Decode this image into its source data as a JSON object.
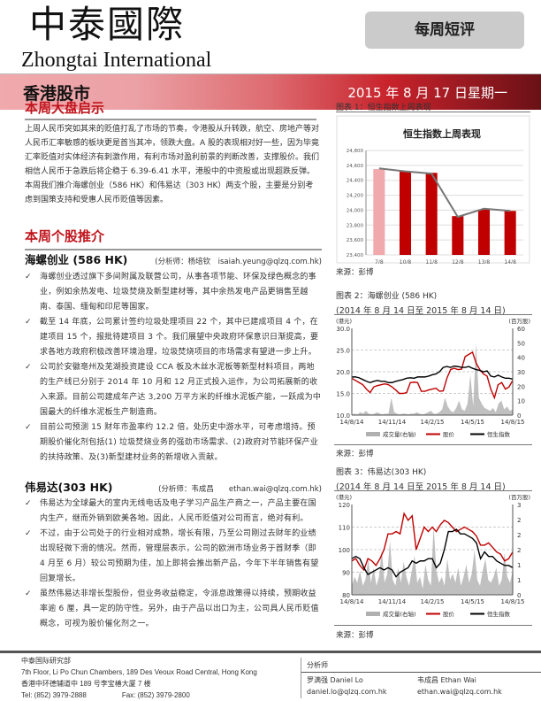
{
  "header": {
    "logo_cn": "中泰國際",
    "logo_en": "Zhongtai International",
    "badge": "每周短评",
    "section": "香港股市",
    "date": "2015 年 8 月 17 日星期一"
  },
  "market": {
    "heading": "本周大盘启示",
    "text": "上周人民币突如其来的贬值打乱了市场的节奏，令港股从升转跌，航空、房地产等对人民币汇率敏感的板块更是首当其冲，领跌大盘。A 股的表现相对好一些，因为毕竟汇率贬值对实体经济有刺激作用，有利市场对盈利前景的判断改善，支撑股价。我们相信人民币于急跌后将企稳于 6.39-6.41 水平，港股中的中资股或出现超跌反弹。本周我们推介海螺创业（586 HK）和伟易达（303 HK）两支个股，主要是分别考虑到国策支持和受惠人民币贬值等因素。"
  },
  "picks": {
    "heading": "本周个股推介",
    "stocks": [
      {
        "name": "海螺创业 (586 HK)",
        "analyst": "(分析师：杨培钦　isaiah.yeung@qlzq.com.hk)",
        "bullets": [
          "海螺创业透过旗下多间附属及联营公司，从事各项节能、环保及绿色概念的事业，例如余热发电、垃圾焚烧及新型建材等，其中余热发电产品更销售至越南、泰国、缅甸和印尼等国家。",
          "截至 14 年底，公司累计签约垃圾处理项目 22 个，其中已建成项目 4 个，在建项目 15 个，报批待建项目 3 个。我们展望中央政府环保意识日渐提高，要求各地方政府积极改善环境治理，垃圾焚烧项目的市场需求有望进一步上升。",
          "公司於安徽亳州及芜湖投资建设 CCA 板及木丝水泥板等新型材料项目，两地的生产线已分别于 2014 年 10 月和 12 月正式投入运作，为公司拓展新的收入来源。目前公司建成年产达 3,200 万平方米的纤维水泥板产能，一跃成为中国最大的纤维水泥板生产制造商。",
          "目前公司预测 15 财年市盈率约 12.2 倍，处历史中游水平，可考虑增持。预期股价催化剂包括(1) 垃圾焚烧业务的强劲市场需求、(2)政府对节能环保产业的扶持政策、及(3)新型建材业务的新增收入贡献。"
        ]
      },
      {
        "name": "伟易达(303 HK)",
        "analyst": "(分析师：韦成昌　　ethan.wai@qlzq.com.hk)",
        "bullets": [
          "伟易达为全球最大的室内无线电话及电子学习产品生产商之一，产品主要在国内生产，继而外销到欧美各地。因此，人民币贬值对公司而言，绝对有利。",
          "不过，由于公司处于的行业相对成熟，增长有限，乃至公司刚过去财年的业绩出现轻微下滑的情况。然而，管理层表示，公司的欧洲市场业务于首财季（即 4 月至 6 月）较公司预期为佳，加上即将会推出新产品，今年下半年销售有望回复增长。",
          "虽然伟易达非增长型股份，但业务收益稳定，令派息政策得以持续，预期收益率逾 6 厘，具一定的防守性。另外，由于产品以出口为主，公司具人民币贬值概念，可视为股价催化剂之一。"
        ]
      }
    ]
  },
  "figures": [
    {
      "caption": "图表 1：恒生指数上周表现",
      "source": "来源：彭博"
    },
    {
      "caption": "图表 2：海螺创业 (586 HK)",
      "subtitle": "(2014 年 8 月 14 日至 2015 年 8 月 14 日)",
      "source": "来源：彭博"
    },
    {
      "caption": "图表 3：伟易达(303 HK)",
      "subtitle": "(2014 年 8 月 14 日至 2015 年 8 月 14 日)",
      "source": "来源：彭博"
    }
  ],
  "chart_data": [
    {
      "type": "bar",
      "title": "恒生指数上周表现",
      "categories": [
        "7/8",
        "10/8",
        "11/8",
        "12/8",
        "13/8",
        "14/8"
      ],
      "values": [
        24550,
        24520,
        24500,
        23920,
        24010,
        23990
      ],
      "line_values": [
        24560,
        24520,
        24490,
        23910,
        24020,
        23990
      ],
      "ylim": [
        23400,
        24800
      ],
      "yticks": [
        "23,400",
        "23,600",
        "23,800",
        "24,000",
        "24,200",
        "24,400",
        "24,600",
        "24,800"
      ],
      "grid": true,
      "colors": {
        "first_bar": "#f0a9ad",
        "bar": "#c00000",
        "line": "#777777"
      }
    },
    {
      "type": "line",
      "left_unit": "(港元)",
      "right_unit": "(百万股)",
      "ylim": [
        10,
        30
      ],
      "yticks": [
        "10.0",
        "15.0",
        "20.0",
        "25.0",
        "30.0"
      ],
      "y2lim": [
        0,
        60
      ],
      "y2ticks": [
        "0",
        "10",
        "20",
        "30",
        "40",
        "50",
        "60"
      ],
      "xticks": [
        "14/8/14",
        "14/11/14",
        "14/2/15",
        "14/5/15",
        "14/8/15"
      ],
      "legend_position": "bottom",
      "series": [
        {
          "name": "成交量(右轴)",
          "type": "area",
          "axis": "right",
          "color": "#b0b0b0",
          "values": [
            0.5,
            1,
            0.5,
            2,
            1,
            3,
            1,
            0.5,
            1,
            2,
            1,
            0.5,
            1,
            1,
            12,
            2,
            1,
            0.5,
            1,
            1,
            0.5,
            1,
            1,
            2,
            1,
            0.5,
            1,
            2,
            3,
            1,
            1,
            2,
            4,
            12,
            6,
            3,
            2,
            5,
            10,
            4,
            3,
            8,
            28,
            6,
            50,
            12,
            8,
            5,
            4,
            3,
            5,
            2,
            8,
            10,
            4,
            6,
            3,
            4
          ]
        },
        {
          "name": "股价",
          "axis": "left",
          "color": "#c00000",
          "values": [
            18.5,
            18,
            17.5,
            17,
            16,
            15.2,
            16.5,
            16.8,
            17,
            17.2,
            17,
            16.5,
            15.8,
            15,
            15,
            15.2,
            17.5,
            17.6,
            17.5,
            15.5,
            15.5,
            15.8,
            16,
            16.2,
            15.5,
            15.6,
            18.5,
            20.5,
            20.8,
            20.5,
            20.6,
            23.5,
            24,
            24.5,
            22,
            20.5,
            19.5,
            19,
            16,
            14,
            17,
            17.5,
            16,
            16.5,
            18
          ]
        },
        {
          "name": "恒生指数",
          "axis": "left",
          "color": "#000000",
          "values": [
            18.8,
            18.8,
            18.6,
            18.2,
            17.8,
            17.5,
            17.8,
            18,
            17.8,
            17.8,
            17.5,
            17.5,
            17.8,
            18,
            18.2,
            18.5,
            18.6,
            18.5,
            18.8,
            18.8,
            18.8,
            19,
            19.3,
            19.5,
            20,
            21,
            21.2,
            21,
            21.3,
            21.2,
            21,
            21,
            21.2,
            20.8,
            20.5,
            20.3,
            20,
            20.2,
            19,
            18.8,
            19.2,
            18.8,
            18.5,
            18.5,
            18.3
          ]
        }
      ]
    },
    {
      "type": "line",
      "left_unit": "(港元)",
      "right_unit": "(百万股)",
      "ylim": [
        80,
        120
      ],
      "yticks": [
        "80",
        "90",
        "100",
        "110",
        "120"
      ],
      "y2lim": [
        0,
        3
      ],
      "y2ticks": [
        "0",
        "1",
        "1",
        "2",
        "2",
        "2",
        "3"
      ],
      "xticks": [
        "14/8/14",
        "14/11/14",
        "14/2/15",
        "14/5/15",
        "14/8/15"
      ],
      "legend_position": "bottom",
      "series": [
        {
          "name": "成交量(右轴)",
          "type": "area",
          "axis": "right",
          "color": "#b0b0b0",
          "values": [
            0.3,
            0.6,
            0.4,
            0.8,
            0.3,
            0.5,
            1.2,
            0.4,
            0.9,
            0.3,
            0.6,
            1.5,
            0.4,
            0.7,
            1.8,
            0.5,
            0.3,
            0.9,
            0.4,
            1.1,
            0.6,
            0.3,
            0.8,
            1.3,
            0.4,
            0.6,
            0.2,
            1,
            0.5,
            0.3,
            2.3,
            0.8,
            0.4,
            0.6,
            0.3,
            1.2,
            0.5,
            0.7,
            0.4,
            0.9,
            0.3,
            0.6,
            1,
            0.4,
            0.7,
            1.5,
            0.5,
            0.3,
            0.8,
            1.2,
            0.5,
            0.4,
            0.6,
            0.9,
            0.3,
            0.5,
            1.4,
            0.6,
            0.4,
            0.8
          ]
        },
        {
          "name": "股价",
          "axis": "left",
          "color": "#c00000",
          "values": [
            95,
            96,
            93,
            91,
            96,
            95,
            93,
            96,
            100,
            107,
            107,
            108,
            107,
            116,
            113,
            115,
            100,
            105,
            110,
            108,
            110,
            108,
            111,
            113,
            112,
            110,
            108,
            109,
            110,
            109,
            108,
            106,
            102,
            102,
            103,
            101,
            99,
            98,
            95,
            96,
            99
          ]
        },
        {
          "name": "恒生指数",
          "axis": "left",
          "color": "#000000",
          "values": [
            96,
            97,
            96,
            92,
            89,
            90,
            91,
            92,
            91,
            92,
            91,
            88,
            90,
            91,
            92,
            95,
            94,
            95,
            95,
            96,
            96,
            92,
            94,
            100,
            108,
            108,
            109,
            107,
            107,
            106,
            105,
            103,
            96,
            99,
            97,
            97,
            95,
            94,
            93,
            93,
            92
          ]
        }
      ]
    }
  ],
  "footer": {
    "org": "中泰国际研究部",
    "address_en": "7th Floor, Li Po Chun Chambers, 189 Des Veoux Road Central, Hong Kong",
    "address_cn": "香港中环德辅道中 189 号李宝椿大厦 7 楼",
    "tel": "Tel: (852) 3979-2888",
    "fax": "Fax: (852) 3979-2800",
    "analyst_label": "分析师",
    "analysts": [
      {
        "name": "罗满强 Daniel Lo",
        "email": "daniel.lo@qlzq.com.hk"
      },
      {
        "name": "韦成昌 Ethan Wai",
        "email": "ethan.wai@qlzq.com.hk"
      }
    ]
  }
}
